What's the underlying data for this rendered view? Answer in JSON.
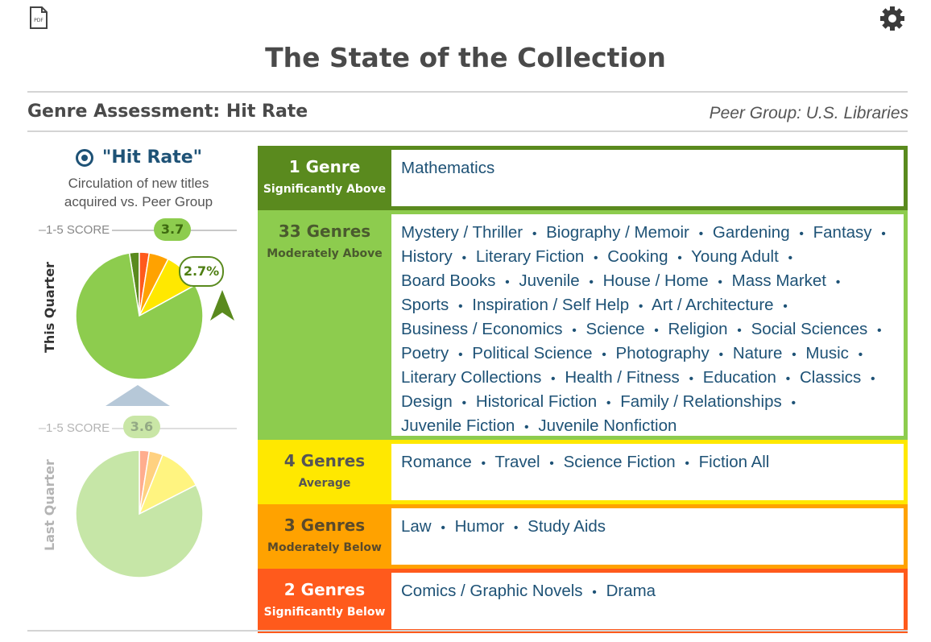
{
  "toolbar": {
    "pdf_icon": "pdf-file-icon",
    "pdf_text": "PDF",
    "settings_icon": "gear-icon"
  },
  "title": "The State of the Collection",
  "section": {
    "title": "Genre Assessment: Hit Rate",
    "peer_group": "Peer Group: U.S. Libraries"
  },
  "metric": {
    "icon": "target-icon",
    "title": "\"Hit Rate\"",
    "subtitle_line1": "Circulation of new titles",
    "subtitle_line2": "acquired vs. Peer Group"
  },
  "this_quarter": {
    "label": "This Quarter",
    "score_label": "1-5 SCORE",
    "score": "3.7",
    "score_fraction": 0.675,
    "change": "2.7%",
    "change_direction": "up",
    "slices_percent": {
      "significantly_above": 2.5,
      "moderately_above": 80.5,
      "average": 9.5,
      "moderately_below": 5.0,
      "significantly_below": 2.5
    }
  },
  "last_quarter": {
    "label": "Last Quarter",
    "score_label": "1-5 SCORE",
    "score": "3.6",
    "score_fraction": 0.52,
    "slices_percent": {
      "significantly_above": 0,
      "moderately_above": 82.5,
      "average": 11.5,
      "moderately_below": 3.5,
      "significantly_below": 2.5
    }
  },
  "colors": {
    "significantly_above": "#5a8a1e",
    "moderately_above": "#8dcc4e",
    "average": "#ffe800",
    "moderately_below": "#ffa200",
    "significantly_below": "#ff5a1c",
    "text_blue": "#1e5276"
  },
  "tiers": [
    {
      "key": "significantly_above",
      "count": "1 Genre",
      "description": "Significantly Above",
      "genres": [
        "Mathematics"
      ]
    },
    {
      "key": "moderately_above",
      "count": "33 Genres",
      "description": "Moderately Above",
      "genres": [
        "Mystery / Thriller",
        "Biography / Memoir",
        "Gardening",
        "Fantasy",
        "History",
        "Literary Fiction",
        "Cooking",
        "Young Adult",
        "Board Books",
        "Juvenile",
        "House / Home",
        "Mass Market",
        "Sports",
        "Inspiration / Self Help",
        "Art / Architecture",
        "Business / Economics",
        "Science",
        "Religion",
        "Social Sciences",
        "Poetry",
        "Political Science",
        "Photography",
        "Nature",
        "Music",
        "Literary Collections",
        "Health / Fitness",
        "Education",
        "Classics",
        "Design",
        "Historical Fiction",
        "Family / Relationships",
        "Juvenile Fiction",
        "Juvenile Nonfiction"
      ]
    },
    {
      "key": "average",
      "count": "4 Genres",
      "description": "Average",
      "genres": [
        "Romance",
        "Travel",
        "Science Fiction",
        "Fiction All"
      ]
    },
    {
      "key": "moderately_below",
      "count": "3 Genres",
      "description": "Moderately Below",
      "genres": [
        "Law",
        "Humor",
        "Study Aids"
      ]
    },
    {
      "key": "significantly_below",
      "count": "2 Genres",
      "description": "Significantly Below",
      "genres": [
        "Comics / Graphic Novels",
        "Drama"
      ]
    }
  ]
}
